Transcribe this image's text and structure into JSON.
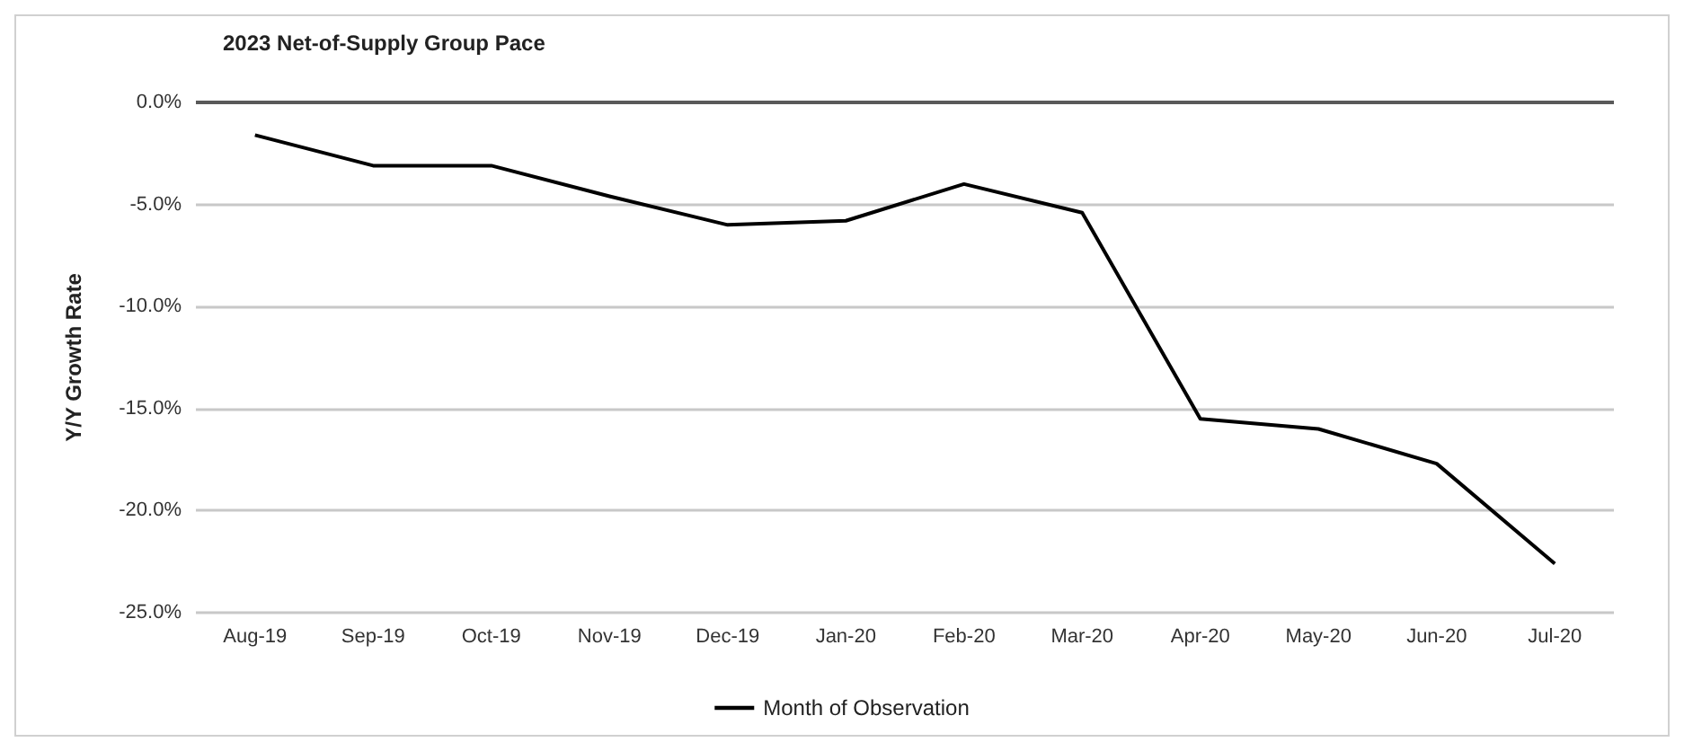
{
  "chart_data": {
    "type": "line",
    "title": "2023 Net-of-Supply Group Pace",
    "ylabel": "Y/Y Growth Rate",
    "categories": [
      "Aug-19",
      "Sep-19",
      "Oct-19",
      "Nov-19",
      "Dec-19",
      "Jan-20",
      "Feb-20",
      "Mar-20",
      "Apr-20",
      "May-20",
      "Jun-20",
      "Jul-20"
    ],
    "series": [
      {
        "name": "Month of Observation",
        "color": "#000000",
        "values": [
          -1.6,
          -3.1,
          -3.1,
          -4.6,
          -6.0,
          -5.8,
          -4.0,
          -5.4,
          -15.5,
          -16.0,
          -17.7,
          -22.6
        ]
      }
    ],
    "ylim": [
      -25,
      0
    ],
    "yticks": [
      {
        "value": -25,
        "label": "-25.0%"
      },
      {
        "value": -20,
        "label": "-20.0%"
      },
      {
        "value": -15,
        "label": "-15.0%"
      },
      {
        "value": -10,
        "label": "-10.0%"
      },
      {
        "value": -5,
        "label": "-5.0%"
      },
      {
        "value": 0,
        "label": "0.0%"
      }
    ],
    "ref_lines": [
      {
        "axis": "y",
        "value": 0,
        "color": "#595959"
      }
    ],
    "grid": "y",
    "legend": "bottom",
    "marker": "none",
    "line_style": "solid"
  }
}
